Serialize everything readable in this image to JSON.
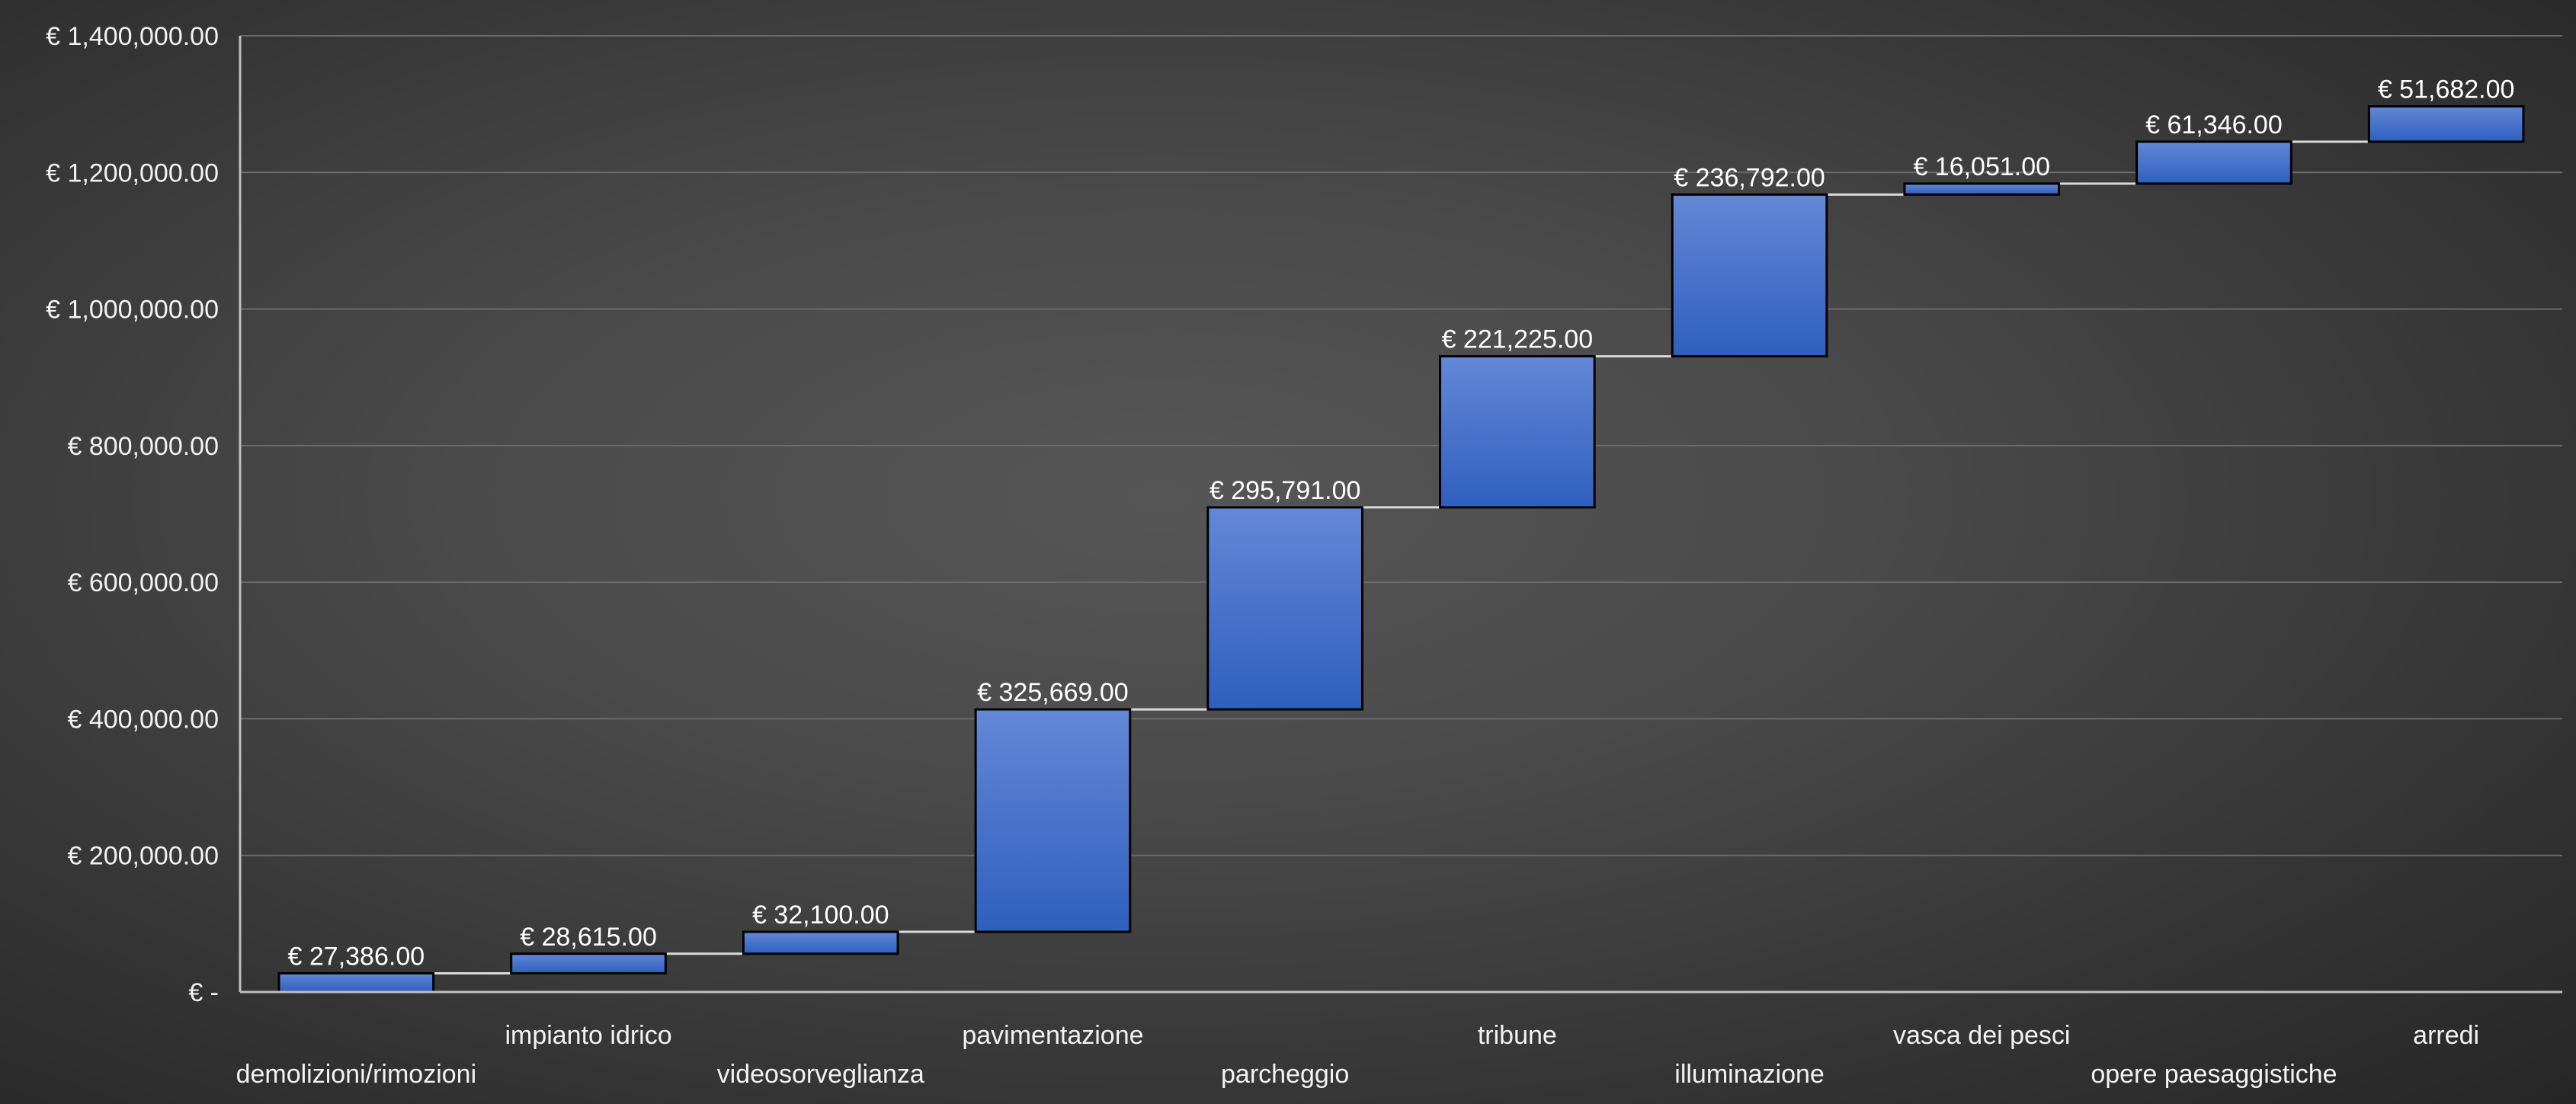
{
  "chart_data": {
    "type": "waterfall",
    "categories": [
      "demolizioni/rimozioni",
      "impianto idrico",
      "videosorveglianza",
      "pavimentazione",
      "parcheggio",
      "tribune",
      "illuminazione",
      "vasca dei pesci",
      "opere paesaggistiche",
      "arredi"
    ],
    "values": [
      27386,
      28615,
      32100,
      325669,
      295791,
      221225,
      236792,
      16051,
      61346,
      51682
    ],
    "data_labels": [
      "€ 27,386.00",
      "€ 28,615.00",
      "€ 32,100.00",
      "€ 325,669.00",
      "€ 295,791.00",
      "€ 221,225.00",
      "€ 236,792.00",
      "€ 16,051.00",
      "€ 61,346.00",
      "€ 51,682.00"
    ],
    "y_ticks": [
      0,
      200000,
      400000,
      600000,
      800000,
      1000000,
      1200000,
      1400000
    ],
    "y_tick_labels": [
      "€ -",
      "€ 200,000.00",
      "€ 400,000.00",
      "€ 600,000.00",
      "€ 800,000.00",
      "€ 1,000,000.00",
      "€ 1,200,000.00",
      "€ 1,400,000.00"
    ],
    "ylim": [
      0,
      1400000
    ],
    "grid": true,
    "legend": "none",
    "title": "",
    "xlabel": "",
    "ylabel": "",
    "colors": {
      "bar_top": "#6388d6",
      "bar_bottom": "#2f5fbe",
      "bar_stroke": "#000000",
      "connector": "#d9d9d9",
      "grid": "#6a6a6a",
      "axis": "#bfbfbf",
      "text": "#f2f2f2"
    }
  }
}
